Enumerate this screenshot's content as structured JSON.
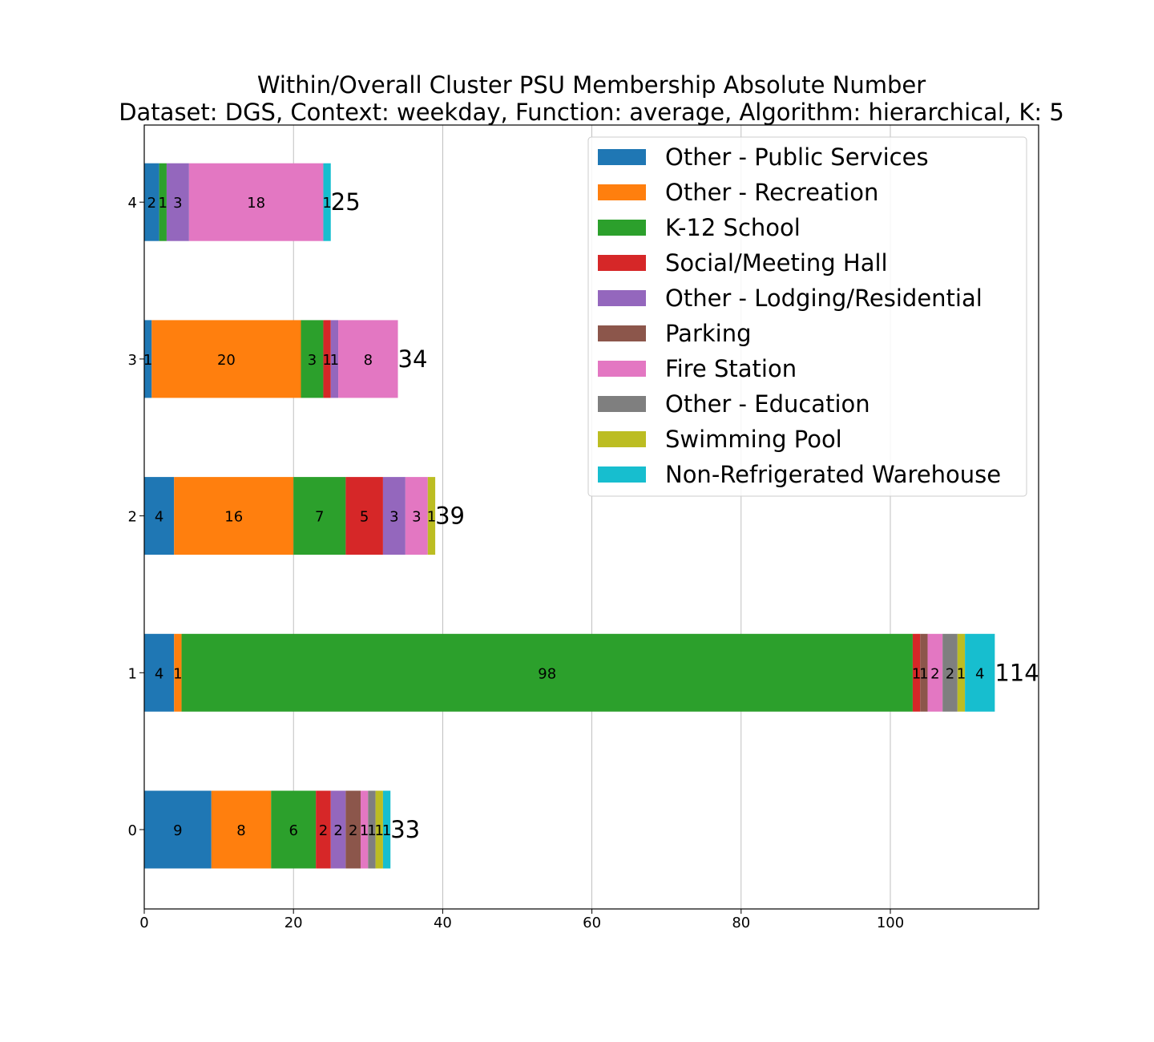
{
  "chart_data": {
    "type": "bar",
    "orientation": "horizontal",
    "stacked": true,
    "title": "Within/Overall Cluster PSU Membership Absolute Number",
    "subtitle": "Dataset: DGS, Context: weekday, Function: average, Algorithm: hierarchical, K: 5",
    "xlabel": "",
    "ylabel": "",
    "xlim": [
      0,
      120
    ],
    "xticks": [
      0,
      20,
      40,
      60,
      80,
      100
    ],
    "grid": "vertical",
    "legend_position": "top-right",
    "categories": [
      "0",
      "1",
      "2",
      "3",
      "4"
    ],
    "totals": [
      33,
      114,
      39,
      34,
      25
    ],
    "series": [
      {
        "name": "Other - Public Services",
        "color": "#1f77b4",
        "values": [
          9,
          4,
          4,
          1,
          2
        ]
      },
      {
        "name": "Other - Recreation",
        "color": "#ff7f0e",
        "values": [
          8,
          1,
          16,
          20,
          0
        ]
      },
      {
        "name": "K-12 School",
        "color": "#2ca02c",
        "values": [
          6,
          98,
          7,
          3,
          1
        ]
      },
      {
        "name": "Social/Meeting Hall",
        "color": "#d62728",
        "values": [
          2,
          1,
          5,
          1,
          0
        ]
      },
      {
        "name": "Other - Lodging/Residential",
        "color": "#9467bd",
        "values": [
          2,
          0,
          3,
          1,
          3
        ]
      },
      {
        "name": "Parking",
        "color": "#8c564b",
        "values": [
          2,
          1,
          0,
          0,
          0
        ]
      },
      {
        "name": "Fire Station",
        "color": "#e377c2",
        "values": [
          1,
          2,
          3,
          8,
          18
        ]
      },
      {
        "name": "Other - Education",
        "color": "#7f7f7f",
        "values": [
          1,
          2,
          0,
          0,
          0
        ]
      },
      {
        "name": "Swimming Pool",
        "color": "#bcbd22",
        "values": [
          1,
          1,
          1,
          0,
          0
        ]
      },
      {
        "name": "Non-Refrigerated Warehouse",
        "color": "#17becf",
        "values": [
          1,
          4,
          0,
          0,
          1
        ]
      }
    ]
  }
}
